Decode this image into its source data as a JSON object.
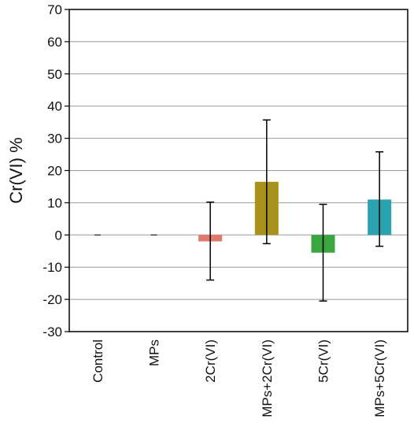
{
  "chart_data": {
    "type": "bar",
    "title": "",
    "xlabel": "",
    "ylabel": "Cr(VI) %",
    "ylim": [
      -30,
      70
    ],
    "yticks": [
      -30,
      -20,
      -10,
      0,
      10,
      20,
      30,
      40,
      50,
      60,
      70
    ],
    "grid": true,
    "legend": "none",
    "categories": [
      "Control",
      "MPs",
      "2Cr(VI)",
      "MPs+2Cr(VI)",
      "5Cr(VI)",
      "MPs+5Cr(VI)"
    ],
    "values": [
      0,
      0,
      -2,
      16.5,
      -5.5,
      11
    ],
    "error_upper": [
      0,
      0,
      10.2,
      35.7,
      9.5,
      25.8
    ],
    "error_lower": [
      0,
      0,
      -14,
      -2.7,
      -20.5,
      -3.5
    ],
    "colors": [
      "#000000",
      "#000000",
      "#e07a6f",
      "#a8921c",
      "#3aa63f",
      "#2aa3b0"
    ]
  }
}
